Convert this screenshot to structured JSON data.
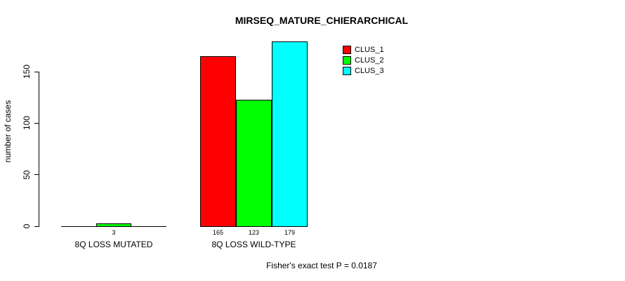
{
  "chart_data": {
    "type": "bar",
    "title": "MIRSEQ_MATURE_CHIERARCHICAL",
    "ylabel": "number of cases",
    "xlabel": "",
    "categories": [
      "8Q LOSS MUTATED",
      "8Q LOSS WILD-TYPE"
    ],
    "series": [
      {
        "name": "CLUS_1",
        "color": "#ff0000",
        "values": [
          0,
          165
        ]
      },
      {
        "name": "CLUS_2",
        "color": "#00ff00",
        "values": [
          3,
          123
        ]
      },
      {
        "name": "CLUS_3",
        "color": "#00ffff",
        "values": [
          0,
          179
        ]
      }
    ],
    "yticks": [
      0,
      50,
      100,
      150
    ],
    "ylim": [
      0,
      183
    ],
    "grid": false,
    "legend_position": "top-right",
    "bar_border_color": "#000000",
    "show_value_labels_above_zero_only": true,
    "annotation": "Fisher's exact test P = 0.0187"
  }
}
